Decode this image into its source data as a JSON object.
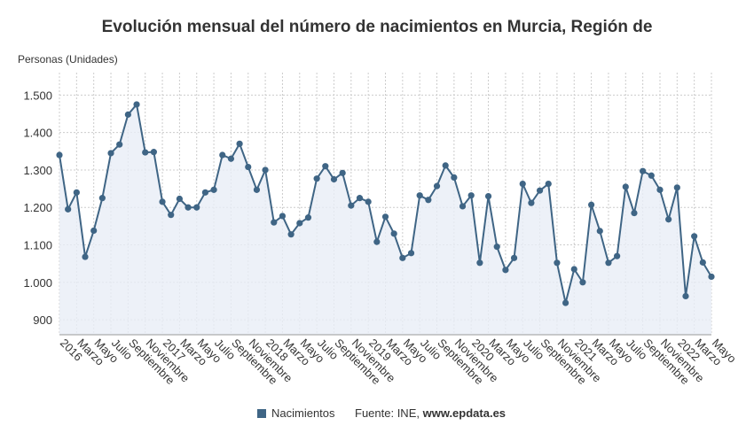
{
  "chart_data": {
    "type": "line",
    "title": "Evolución mensual del número de nacimientos en Murcia, Región de",
    "ylabel": "Personas (Unidades)",
    "ylim": [
      860,
      1560
    ],
    "yticks": [
      900,
      1000,
      1100,
      1200,
      1300,
      1400,
      1500
    ],
    "ytick_labels": [
      "900",
      "1.000",
      "1.100",
      "1.200",
      "1.300",
      "1.400",
      "1.500"
    ],
    "grid": true,
    "line_color": "#3f6585",
    "fill_color": "#e9eef6",
    "x_tick_labels": [
      {
        "i": 0,
        "label": "2016"
      },
      {
        "i": 2,
        "label": "Marzo"
      },
      {
        "i": 4,
        "label": "Mayo"
      },
      {
        "i": 6,
        "label": "Julio"
      },
      {
        "i": 8,
        "label": "Septiembre"
      },
      {
        "i": 10,
        "label": "Noviembre"
      },
      {
        "i": 12,
        "label": "2017"
      },
      {
        "i": 14,
        "label": "Marzo"
      },
      {
        "i": 16,
        "label": "Mayo"
      },
      {
        "i": 18,
        "label": "Julio"
      },
      {
        "i": 20,
        "label": "Septiembre"
      },
      {
        "i": 22,
        "label": "Noviembre"
      },
      {
        "i": 24,
        "label": "2018"
      },
      {
        "i": 26,
        "label": "Marzo"
      },
      {
        "i": 28,
        "label": "Mayo"
      },
      {
        "i": 30,
        "label": "Julio"
      },
      {
        "i": 32,
        "label": "Septiembre"
      },
      {
        "i": 34,
        "label": "Noviembre"
      },
      {
        "i": 36,
        "label": "2019"
      },
      {
        "i": 38,
        "label": "Marzo"
      },
      {
        "i": 40,
        "label": "Mayo"
      },
      {
        "i": 42,
        "label": "Julio"
      },
      {
        "i": 44,
        "label": "Septiembre"
      },
      {
        "i": 46,
        "label": "Noviembre"
      },
      {
        "i": 48,
        "label": "2020"
      },
      {
        "i": 50,
        "label": "Marzo"
      },
      {
        "i": 52,
        "label": "Mayo"
      },
      {
        "i": 54,
        "label": "Julio"
      },
      {
        "i": 56,
        "label": "Septiembre"
      },
      {
        "i": 58,
        "label": "Noviembre"
      },
      {
        "i": 60,
        "label": "2021"
      },
      {
        "i": 62,
        "label": "Marzo"
      },
      {
        "i": 64,
        "label": "Mayo"
      },
      {
        "i": 66,
        "label": "Julio"
      },
      {
        "i": 68,
        "label": "Septiembre"
      },
      {
        "i": 70,
        "label": "Noviembre"
      },
      {
        "i": 72,
        "label": "2022"
      },
      {
        "i": 74,
        "label": "Marzo"
      },
      {
        "i": 76,
        "label": "Mayo"
      }
    ],
    "series": [
      {
        "name": "Nacimientos",
        "values": [
          1340,
          1195,
          1240,
          1068,
          1138,
          1225,
          1345,
          1368,
          1448,
          1475,
          1347,
          1348,
          1215,
          1180,
          1223,
          1200,
          1200,
          1240,
          1247,
          1340,
          1330,
          1370,
          1308,
          1247,
          1300,
          1160,
          1177,
          1128,
          1158,
          1173,
          1277,
          1310,
          1275,
          1292,
          1205,
          1225,
          1215,
          1108,
          1175,
          1130,
          1065,
          1078,
          1232,
          1220,
          1257,
          1312,
          1280,
          1203,
          1232,
          1052,
          1230,
          1095,
          1033,
          1065,
          1263,
          1212,
          1245,
          1263,
          1052,
          945,
          1035,
          1000,
          1207,
          1137,
          1052,
          1070,
          1255,
          1185,
          1297,
          1285,
          1247,
          1168,
          1253,
          963,
          1123,
          1053,
          1015
        ]
      }
    ]
  },
  "footer": {
    "legend_label": "Nacimientos",
    "source_prefix": "Fuente: INE, ",
    "source_site": "www.epdata.es"
  }
}
